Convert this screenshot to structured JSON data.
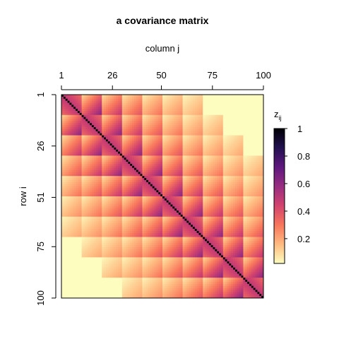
{
  "chart_data": {
    "type": "heatmap",
    "title": "a covariance matrix",
    "xlabel": "column j",
    "ylabel": "row i",
    "n": 100,
    "rows": {
      "from": 1,
      "to": 100
    },
    "cols": {
      "from": 1,
      "to": 100
    },
    "x_ticks": [
      "1",
      "26",
      "50",
      "75",
      "100"
    ],
    "y_ticks": [
      "1",
      "26",
      "51",
      "75",
      "100"
    ],
    "colorbar": {
      "title": "z",
      "title_subscript": "ij",
      "ticks": [
        "0.2",
        "0.4",
        "0.6",
        "0.8",
        "1"
      ],
      "tick_values": [
        0.2,
        0.4,
        0.6,
        0.8,
        1.0
      ],
      "range": [
        0.02,
        1.0
      ]
    },
    "palette": [
      "#FCFDBF",
      "#FEBA80",
      "#F8765C",
      "#D3436E",
      "#982D80",
      "#5F187F",
      "#221150",
      "#000004"
    ],
    "value_model": {
      "diagonal": 1.0,
      "baseline": 0.02,
      "block_size": 10,
      "max_block_offset": 6,
      "block_decay": 0.8,
      "first_block_start": 0.5,
      "first_block_end": 0.35,
      "ramp_peak": 0.6,
      "ramp_low": 0.12
    }
  }
}
